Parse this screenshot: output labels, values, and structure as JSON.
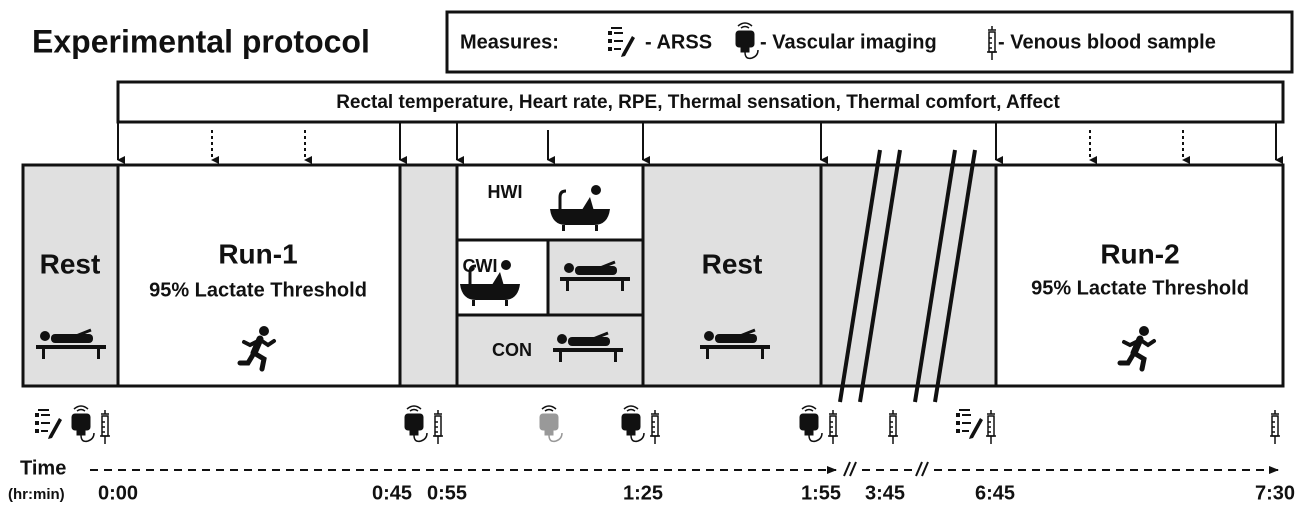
{
  "header": {
    "title": "Experimental protocol"
  },
  "measures": {
    "label": "Measures:",
    "items": [
      "- ARSS",
      "- Vascular imaging",
      "- Venous blood sample"
    ]
  },
  "measurements_bar": "Rectal temperature, Heart rate, RPE, Thermal sensation, Thermal comfort,  Affect",
  "phases": [
    {
      "label": "Rest"
    },
    {
      "label": "Run-1",
      "subtitle": "95% Lactate Threshold"
    },
    {
      "label": "Rest"
    },
    {
      "label": "Run-2",
      "subtitle": "95% Lactate Threshold"
    }
  ],
  "interventions": [
    "HWI",
    "CWI",
    "CON"
  ],
  "timeline": {
    "label": "Time",
    "unit": "(hr:min)",
    "times": [
      "0:00",
      "0:45",
      "0:55",
      "1:25",
      "1:55",
      "3:45",
      "6:45",
      "7:30"
    ]
  }
}
